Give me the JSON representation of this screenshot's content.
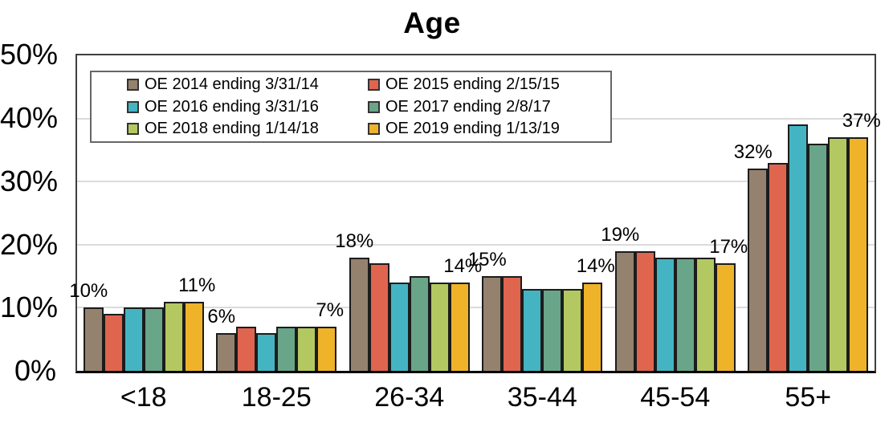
{
  "chart_data": {
    "type": "bar",
    "title": "Age",
    "categories": [
      "<18",
      "18-25",
      "26-34",
      "35-44",
      "45-54",
      "55+"
    ],
    "series": [
      {
        "name": "OE 2014 ending 3/31/14",
        "color": "#94826E",
        "values": [
          10,
          6,
          18,
          15,
          19,
          32
        ]
      },
      {
        "name": "OE 2015 ending 2/15/15",
        "color": "#E0654F",
        "values": [
          9,
          7,
          17,
          15,
          19,
          33
        ]
      },
      {
        "name": "OE 2016 ending 3/31/16",
        "color": "#45B4C2",
        "values": [
          10,
          6,
          14,
          13,
          18,
          39
        ]
      },
      {
        "name": "OE 2017 ending 2/8/17",
        "color": "#69A588",
        "values": [
          10,
          7,
          15,
          13,
          18,
          36
        ]
      },
      {
        "name": "OE 2018 ending 1/14/18",
        "color": "#B4C861",
        "values": [
          11,
          7,
          14,
          13,
          18,
          37
        ]
      },
      {
        "name": "OE 2019 ending 1/13/19",
        "color": "#EFB32A",
        "values": [
          11,
          7,
          14,
          14,
          17,
          37
        ]
      }
    ],
    "y_ticks": [
      "50%",
      "40%",
      "30%",
      "20%",
      "10%",
      "0%"
    ],
    "ylim": [
      0,
      50
    ],
    "grid": true,
    "gridline_step": 10,
    "legend_position": "top-left-inside",
    "xlabel": "",
    "ylabel": "",
    "data_labels": {
      "labeled_series_indexes": [
        0,
        5
      ],
      "first_series_labels": [
        "10%",
        "6%",
        "18%",
        "15%",
        "19%",
        "32%"
      ],
      "last_series_labels": [
        "11%",
        "7%",
        "14%",
        "14%",
        "17%",
        "37%"
      ]
    },
    "colors": {
      "grid": "#DBDBDB",
      "plot_border": "#3F3F3F",
      "axis_bottom": "#000000",
      "bar_border": "#1C1C1C",
      "text": "#000000"
    }
  }
}
